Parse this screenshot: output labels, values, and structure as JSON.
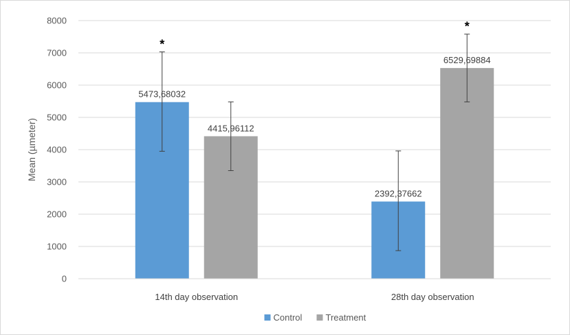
{
  "chart_data": {
    "type": "bar",
    "categories": [
      "14th day observation",
      "28th day observation"
    ],
    "series": [
      {
        "name": "Control",
        "color": "#5b9bd5",
        "values": [
          5473.68032,
          2392.37662
        ],
        "value_labels": [
          "5473,68032",
          "2392,37662"
        ],
        "error_low": [
          3950,
          870
        ],
        "error_high": [
          7030,
          3960
        ],
        "significance": [
          "*",
          ""
        ]
      },
      {
        "name": "Treatment",
        "color": "#a5a5a5",
        "values": [
          4415.96112,
          6529.69884
        ],
        "value_labels": [
          "4415,96112",
          "6529,69884"
        ],
        "error_low": [
          3350,
          5480
        ],
        "error_high": [
          5480,
          7580
        ],
        "significance": [
          "",
          "*"
        ]
      }
    ],
    "title": "",
    "xlabel": "",
    "ylabel": "Mean (µmeter)",
    "ylim": [
      0,
      8000
    ],
    "yticks": [
      0,
      1000,
      2000,
      3000,
      4000,
      5000,
      6000,
      7000,
      8000
    ],
    "ytick_labels": [
      "0",
      "1000",
      "2000",
      "3000",
      "4000",
      "5000",
      "6000",
      "7000",
      "8000"
    ],
    "grid": true,
    "legend_position": "bottom",
    "gridline_color": "#d9d9d9",
    "errorbar_color": "#404040"
  }
}
